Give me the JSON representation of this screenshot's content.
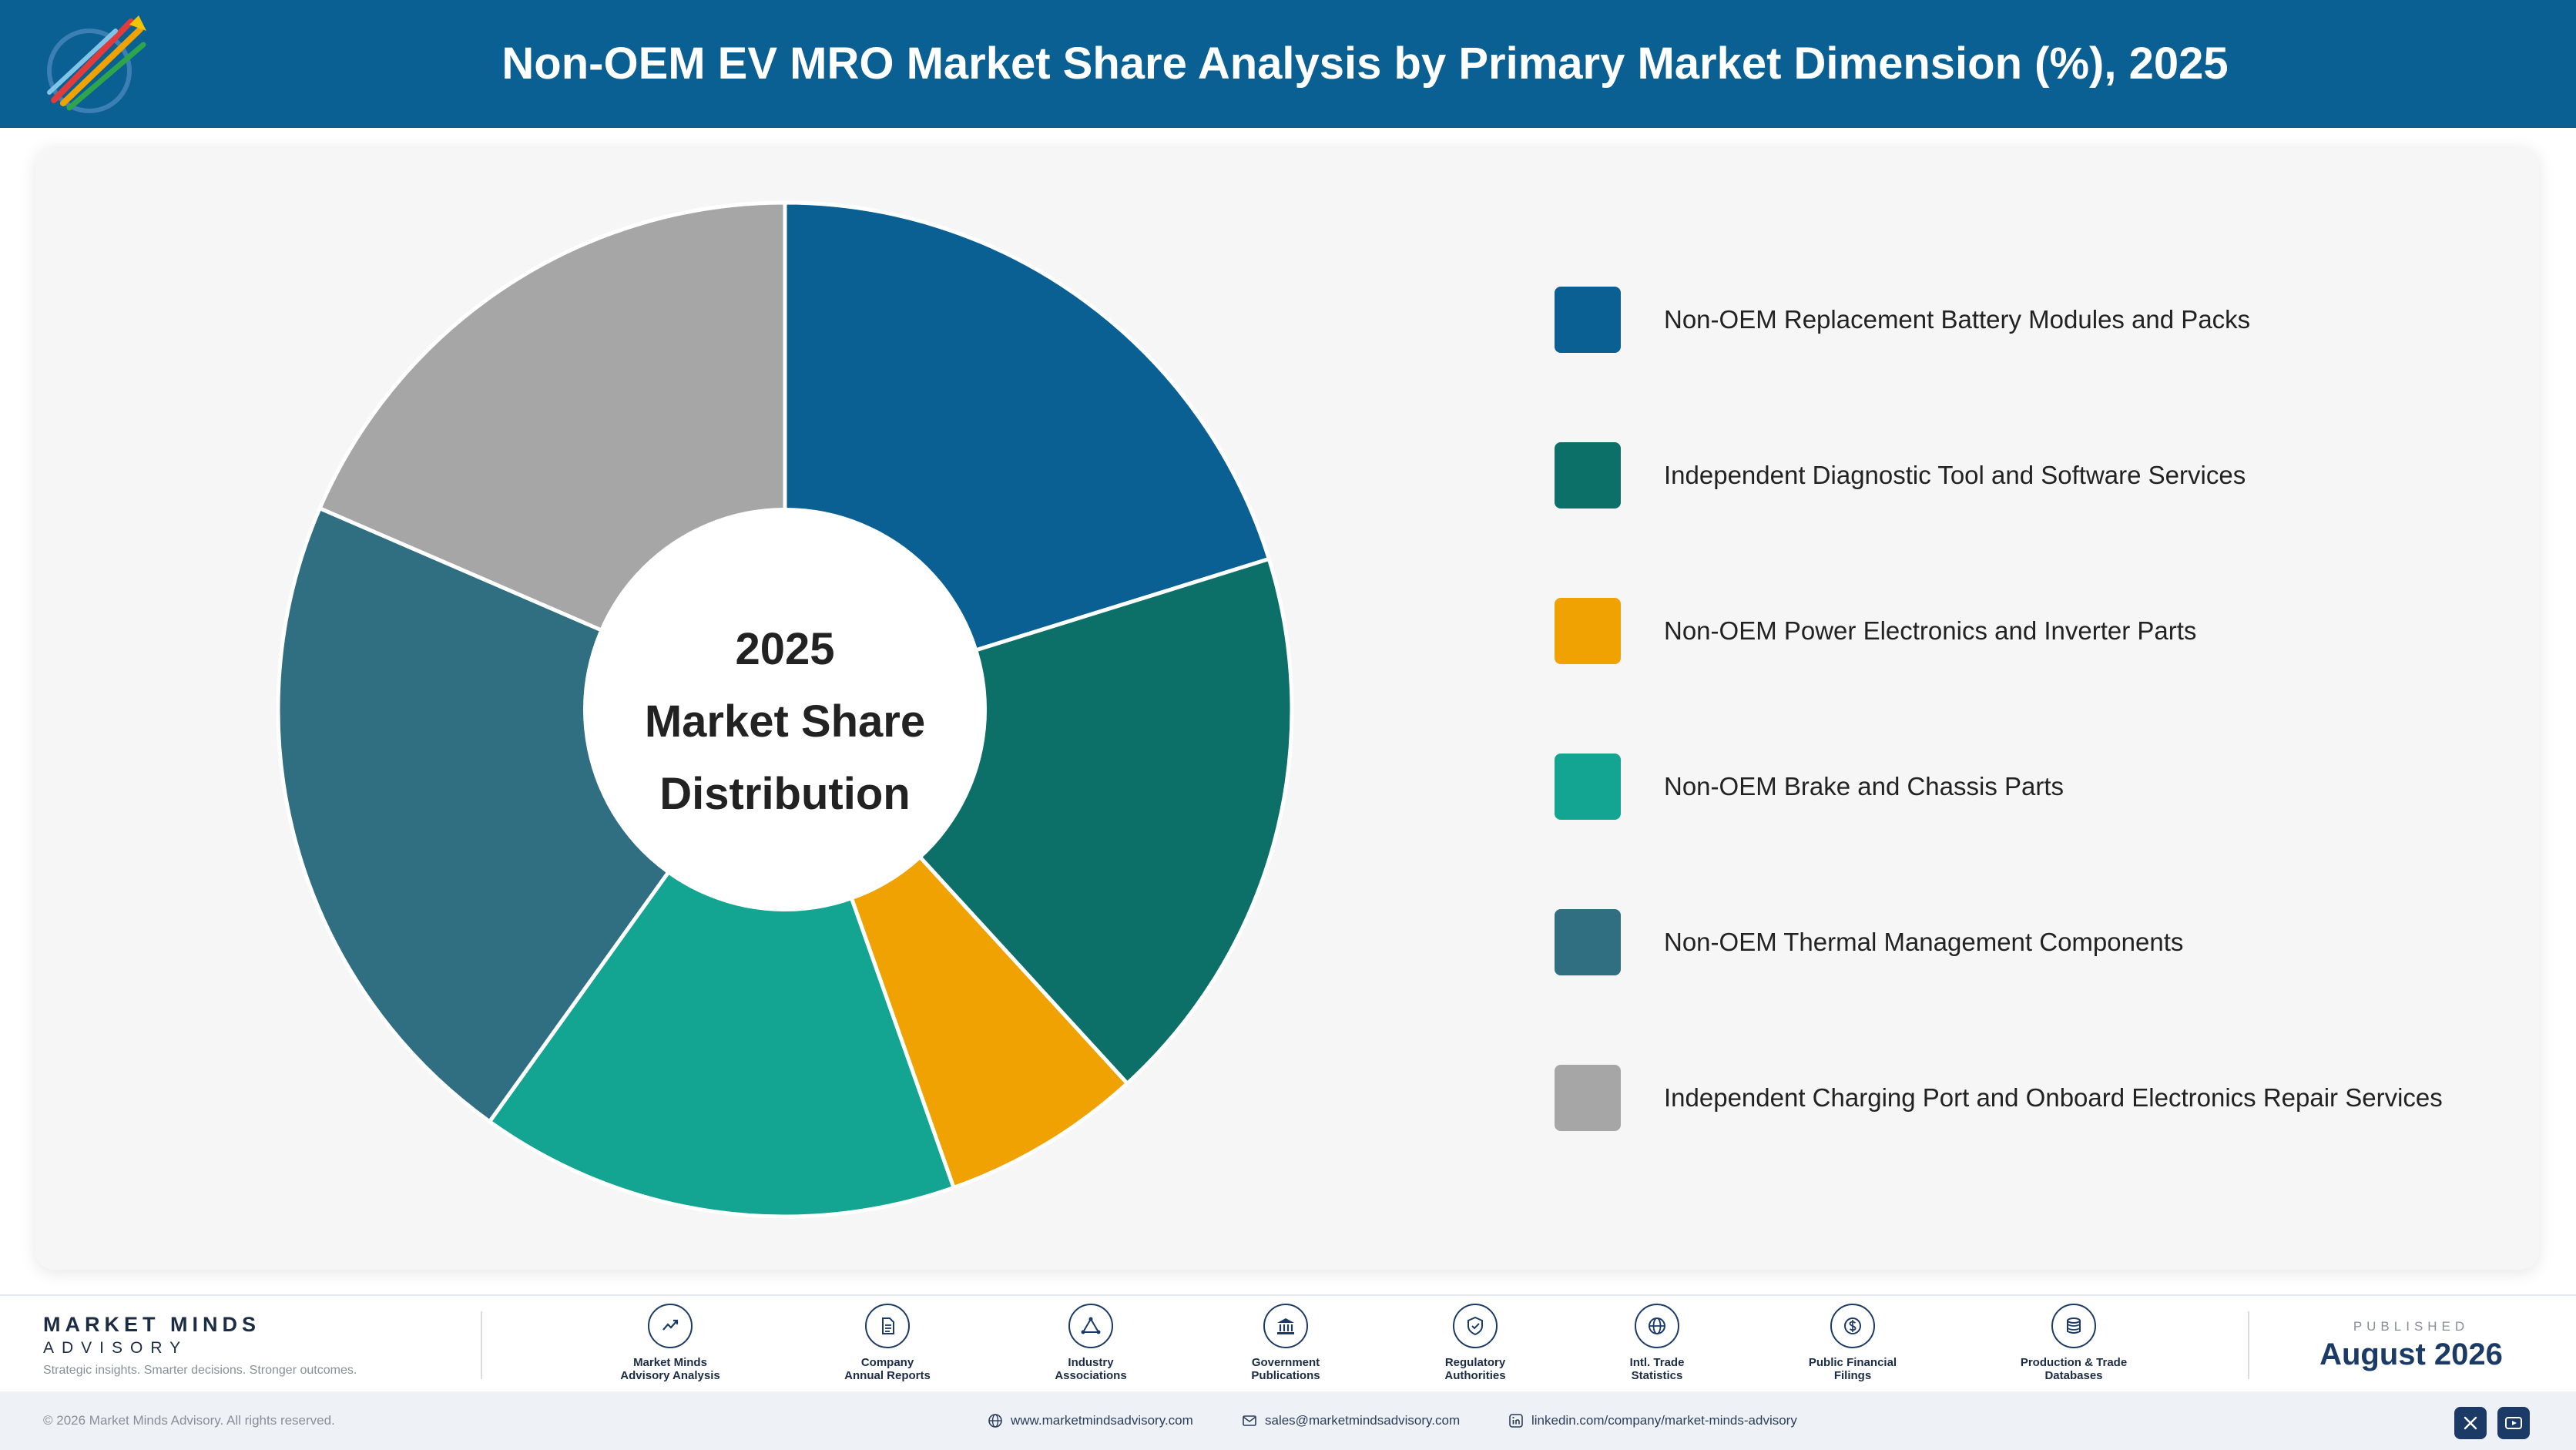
{
  "header": {
    "title": "Non-OEM EV MRO Market Share Analysis by Primary Market Dimension (%), 2025"
  },
  "chart_data": {
    "type": "pie",
    "center_label": [
      "2025",
      "Market Share",
      "Distribution"
    ],
    "categories": [
      "Non-OEM Replacement Battery Modules and Packs",
      "Independent Diagnostic Tool and Software Services",
      "Non-OEM Power Electronics and Inverter Parts",
      "Non-OEM Brake and Chassis Parts",
      "Non-OEM Thermal Management Components",
      "Independent Charging Port and Onboard Electronics Repair Services"
    ],
    "values": [
      20.2,
      18.0,
      6.4,
      15.3,
      21.6,
      18.5
    ],
    "colors": [
      "#0a5f93",
      "#0c7068",
      "#f0a202",
      "#13a592",
      "#306e81",
      "#a6a6a6"
    ],
    "legend_position": "right"
  },
  "footer": {
    "brand_name": "MARKET MINDS",
    "brand_sub": "ADVISORY",
    "tagline": "Strategic insights. Smarter decisions. Stronger outcomes.",
    "sources": [
      {
        "icon": "chart-line-icon",
        "label_lines": [
          "Market Minds",
          "Advisory Analysis"
        ]
      },
      {
        "icon": "document-icon",
        "label_lines": [
          "Company",
          "Annual Reports"
        ]
      },
      {
        "icon": "network-icon",
        "label_lines": [
          "Industry",
          "Associations"
        ]
      },
      {
        "icon": "government-building-icon",
        "label_lines": [
          "Government",
          "Publications"
        ]
      },
      {
        "icon": "shield-check-icon",
        "label_lines": [
          "Regulatory",
          "Authorities"
        ]
      },
      {
        "icon": "globe-icon",
        "label_lines": [
          "Intl. Trade",
          "Statistics"
        ]
      },
      {
        "icon": "dollar-coin-icon",
        "label_lines": [
          "Public Financial",
          "Filings"
        ]
      },
      {
        "icon": "database-icon",
        "label_lines": [
          "Production & Trade",
          "Databases"
        ]
      }
    ],
    "published_label": "PUBLISHED",
    "published_date": "August 2026"
  },
  "bottom_bar": {
    "copyright": "© 2026 Market Minds Advisory. All rights reserved.",
    "website": "www.marketmindsadvisory.com",
    "email": "sales@marketmindsadvisory.com",
    "linkedin": "linkedin.com/company/market-minds-advisory",
    "social_icons": [
      "x-icon",
      "youtube-icon"
    ]
  }
}
